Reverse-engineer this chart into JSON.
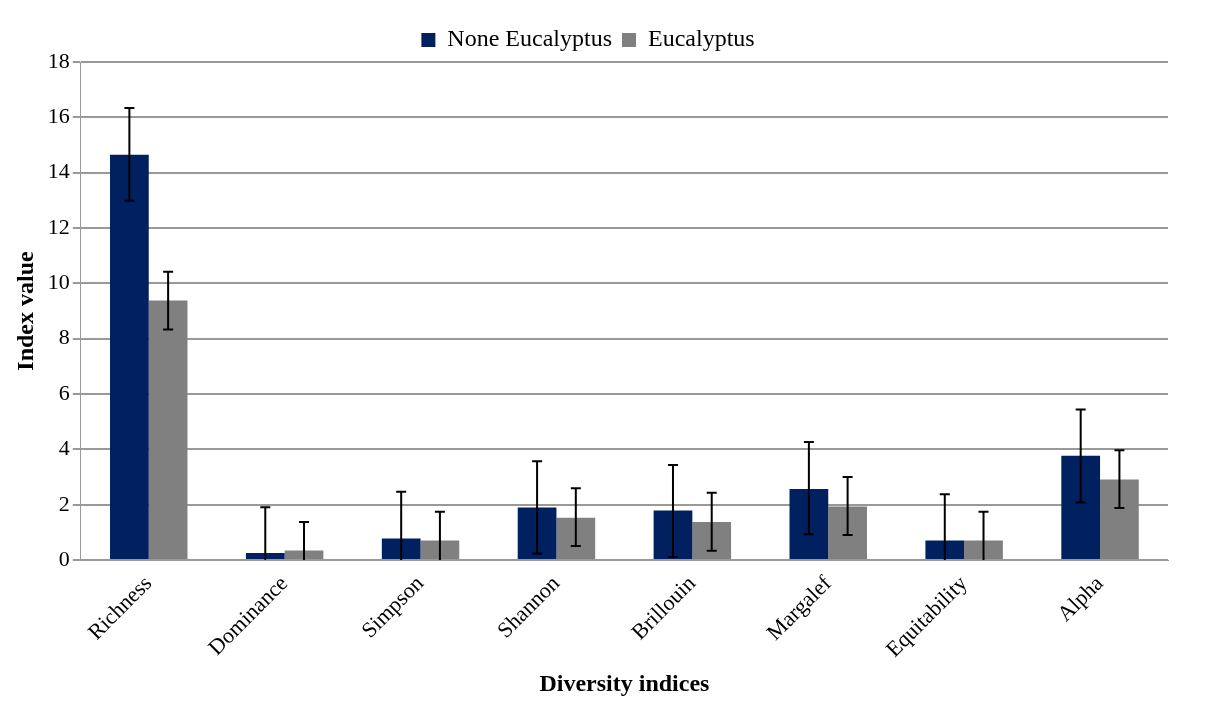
{
  "chart_data": {
    "type": "bar",
    "xlabel": "Diversity indices",
    "ylabel": "Index value",
    "categories": [
      "Richness",
      "Dominance",
      "Simpson",
      "Shannon",
      "Brillouin",
      "Margalef",
      "Equitability",
      "Alpha"
    ],
    "series": [
      {
        "name": "None Eucalyptus",
        "color": "#002060",
        "values": [
          14.65,
          0.26,
          0.78,
          1.9,
          1.79,
          2.57,
          0.71,
          3.77
        ],
        "errors": [
          [
            12.99,
            16.34
          ],
          [
            0,
            1.91
          ],
          [
            0,
            2.47
          ],
          [
            0.24,
            3.57
          ],
          [
            0.11,
            3.44
          ],
          [
            0.93,
            4.27
          ],
          [
            0,
            2.38
          ],
          [
            2.08,
            5.44
          ]
        ]
      },
      {
        "name": "Eucalyptus",
        "color": "#808080",
        "values": [
          9.38,
          0.35,
          0.71,
          1.53,
          1.38,
          1.94,
          0.71,
          2.91
        ],
        "errors": [
          [
            8.33,
            10.42
          ],
          [
            0,
            1.38
          ],
          [
            0,
            1.75
          ],
          [
            0.51,
            2.6
          ],
          [
            0.34,
            2.43
          ],
          [
            0.91,
            3.0
          ],
          [
            0,
            1.75
          ],
          [
            1.88,
            3.97
          ]
        ]
      }
    ],
    "ylim": [
      0,
      18
    ],
    "yticks": [
      0,
      2,
      4,
      6,
      8,
      10,
      12,
      14,
      16,
      18
    ],
    "grid": "y",
    "legend": "top"
  }
}
